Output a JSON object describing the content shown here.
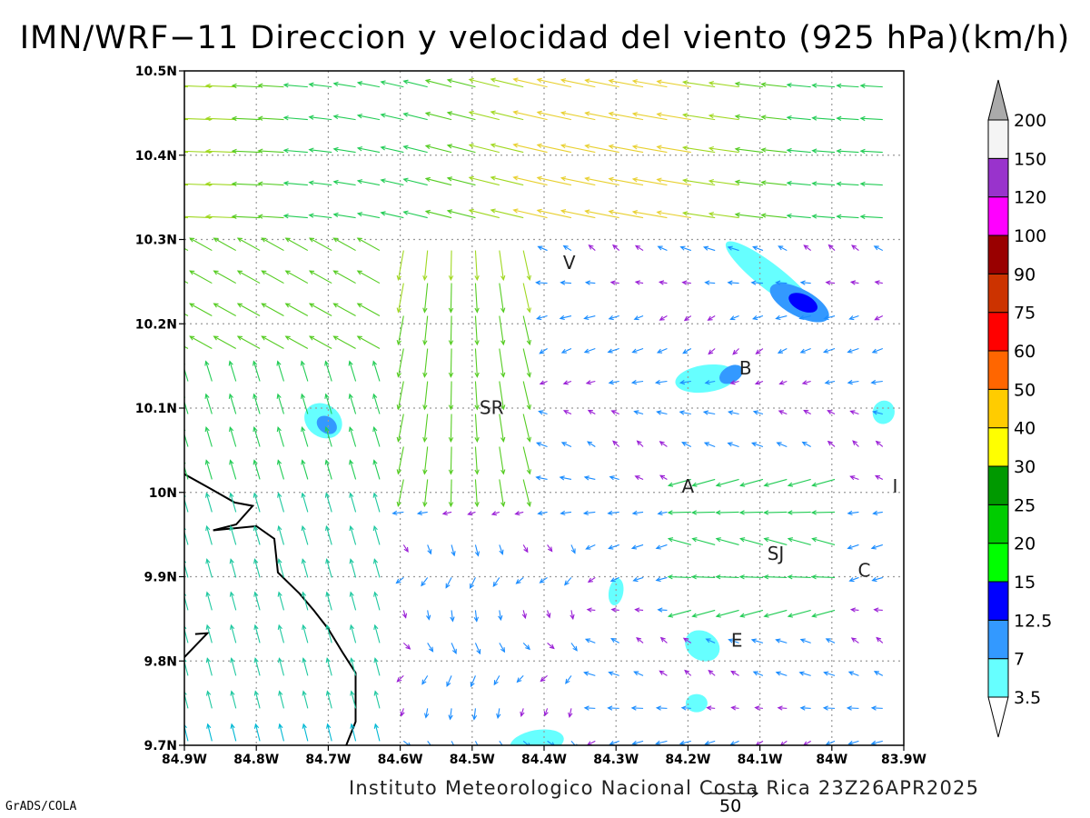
{
  "title": "IMN/WRF−11 Direccion y velocidad del viento (925 hPa)(km/h)",
  "footer": "Instituto Meteorologico Nacional Costa Rica  23Z26APR2025",
  "software": "GrADS/COLA",
  "reference_vector_label": "50",
  "axes": {
    "lon_ticks": [
      "84.9W",
      "84.8W",
      "84.7W",
      "84.6W",
      "84.5W",
      "84.4W",
      "84.3W",
      "84.2W",
      "84.1W",
      "84W",
      "83.9W"
    ],
    "lat_ticks": [
      "10.5N",
      "10.4N",
      "10.3N",
      "10.2N",
      "10.1N",
      "10N",
      "9.9N",
      "9.8N",
      "9.7N"
    ],
    "lon_range": [
      -84.9,
      -83.9
    ],
    "lat_range": [
      9.7,
      10.5
    ],
    "grid": "dotted"
  },
  "places": [
    {
      "label": "V",
      "lon": -84.365,
      "lat": 10.265
    },
    {
      "label": "B",
      "lon": -84.12,
      "lat": 10.14
    },
    {
      "label": "SR",
      "lon": -84.473,
      "lat": 10.093
    },
    {
      "label": "A",
      "lon": -84.2,
      "lat": 10.0
    },
    {
      "label": "I",
      "lon": -83.912,
      "lat": 10.0
    },
    {
      "label": "SJ",
      "lon": -84.078,
      "lat": 9.92
    },
    {
      "label": "C",
      "lon": -83.955,
      "lat": 9.9
    },
    {
      "label": "E",
      "lon": -84.132,
      "lat": 9.817
    }
  ],
  "colorbar": {
    "levels": [
      "3.5",
      "7",
      "12.5",
      "15",
      "20",
      "25",
      "30",
      "40",
      "50",
      "60",
      "75",
      "90",
      "100",
      "120",
      "150",
      "200"
    ],
    "colors": [
      "#66ffff",
      "#3399ff",
      "#0000ff",
      "#00ff00",
      "#00cc00",
      "#009900",
      "#ffff00",
      "#ffcc00",
      "#ff6600",
      "#ff0000",
      "#cc3300",
      "#990000",
      "#ff00ff",
      "#9933cc",
      "#f4f4f4",
      "#aaaaaa"
    ]
  }
}
